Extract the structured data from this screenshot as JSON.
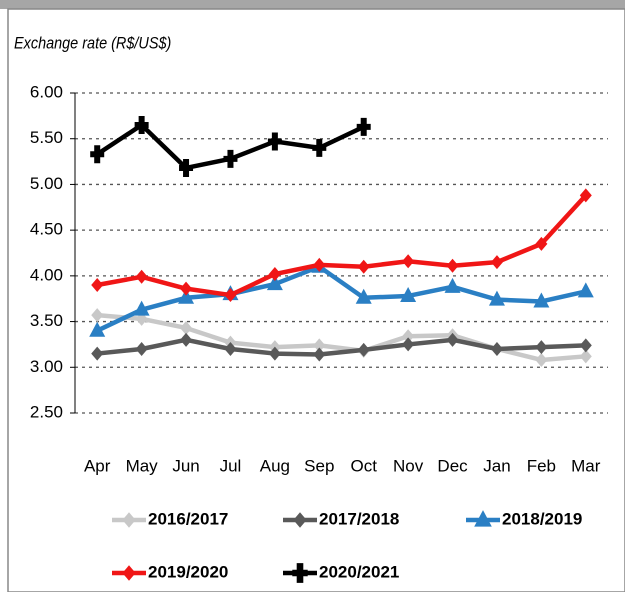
{
  "chart_data": {
    "type": "line",
    "ylabel": "Exchange rate (R$/US$)",
    "categories": [
      "Apr",
      "May",
      "Jun",
      "Jul",
      "Aug",
      "Sep",
      "Oct",
      "Nov",
      "Dec",
      "Jan",
      "Feb",
      "Mar"
    ],
    "series": [
      {
        "name": "2016/2017",
        "color": "#c8c8c8",
        "marker": "diamond",
        "values": [
          3.57,
          3.53,
          3.43,
          3.27,
          3.22,
          3.24,
          3.18,
          3.34,
          3.35,
          3.2,
          3.08,
          3.12
        ]
      },
      {
        "name": "2017/2018",
        "color": "#595959",
        "marker": "diamond",
        "values": [
          3.15,
          3.2,
          3.3,
          3.2,
          3.15,
          3.14,
          3.19,
          3.25,
          3.3,
          3.2,
          3.22,
          3.24
        ]
      },
      {
        "name": "2018/2019",
        "color": "#2a7fc4",
        "marker": "triangle",
        "values": [
          3.4,
          3.63,
          3.76,
          3.8,
          3.91,
          4.1,
          3.76,
          3.78,
          3.88,
          3.74,
          3.72,
          3.83
        ]
      },
      {
        "name": "2019/2020",
        "color": "#f01616",
        "marker": "diamond",
        "values": [
          3.9,
          3.99,
          3.86,
          3.79,
          4.02,
          4.12,
          4.1,
          4.16,
          4.11,
          4.15,
          4.35,
          4.88
        ]
      },
      {
        "name": "2020/2021",
        "color": "#000000",
        "marker": "plus",
        "values": [
          5.33,
          5.65,
          5.18,
          5.28,
          5.47,
          5.4,
          5.63,
          null,
          null,
          null,
          null,
          null
        ]
      }
    ],
    "ylim": [
      2.5,
      6.0
    ],
    "yticks": [
      {
        "value": 2.5,
        "label": "2.50"
      },
      {
        "value": 3.0,
        "label": "3.00"
      },
      {
        "value": 3.5,
        "label": "3.50"
      },
      {
        "value": 4.0,
        "label": "4.00"
      },
      {
        "value": 4.5,
        "label": "4.50"
      },
      {
        "value": 5.0,
        "label": "5.00"
      },
      {
        "value": 5.5,
        "label": "5.50"
      },
      {
        "value": 6.0,
        "label": "6.00"
      }
    ],
    "grid": true
  }
}
